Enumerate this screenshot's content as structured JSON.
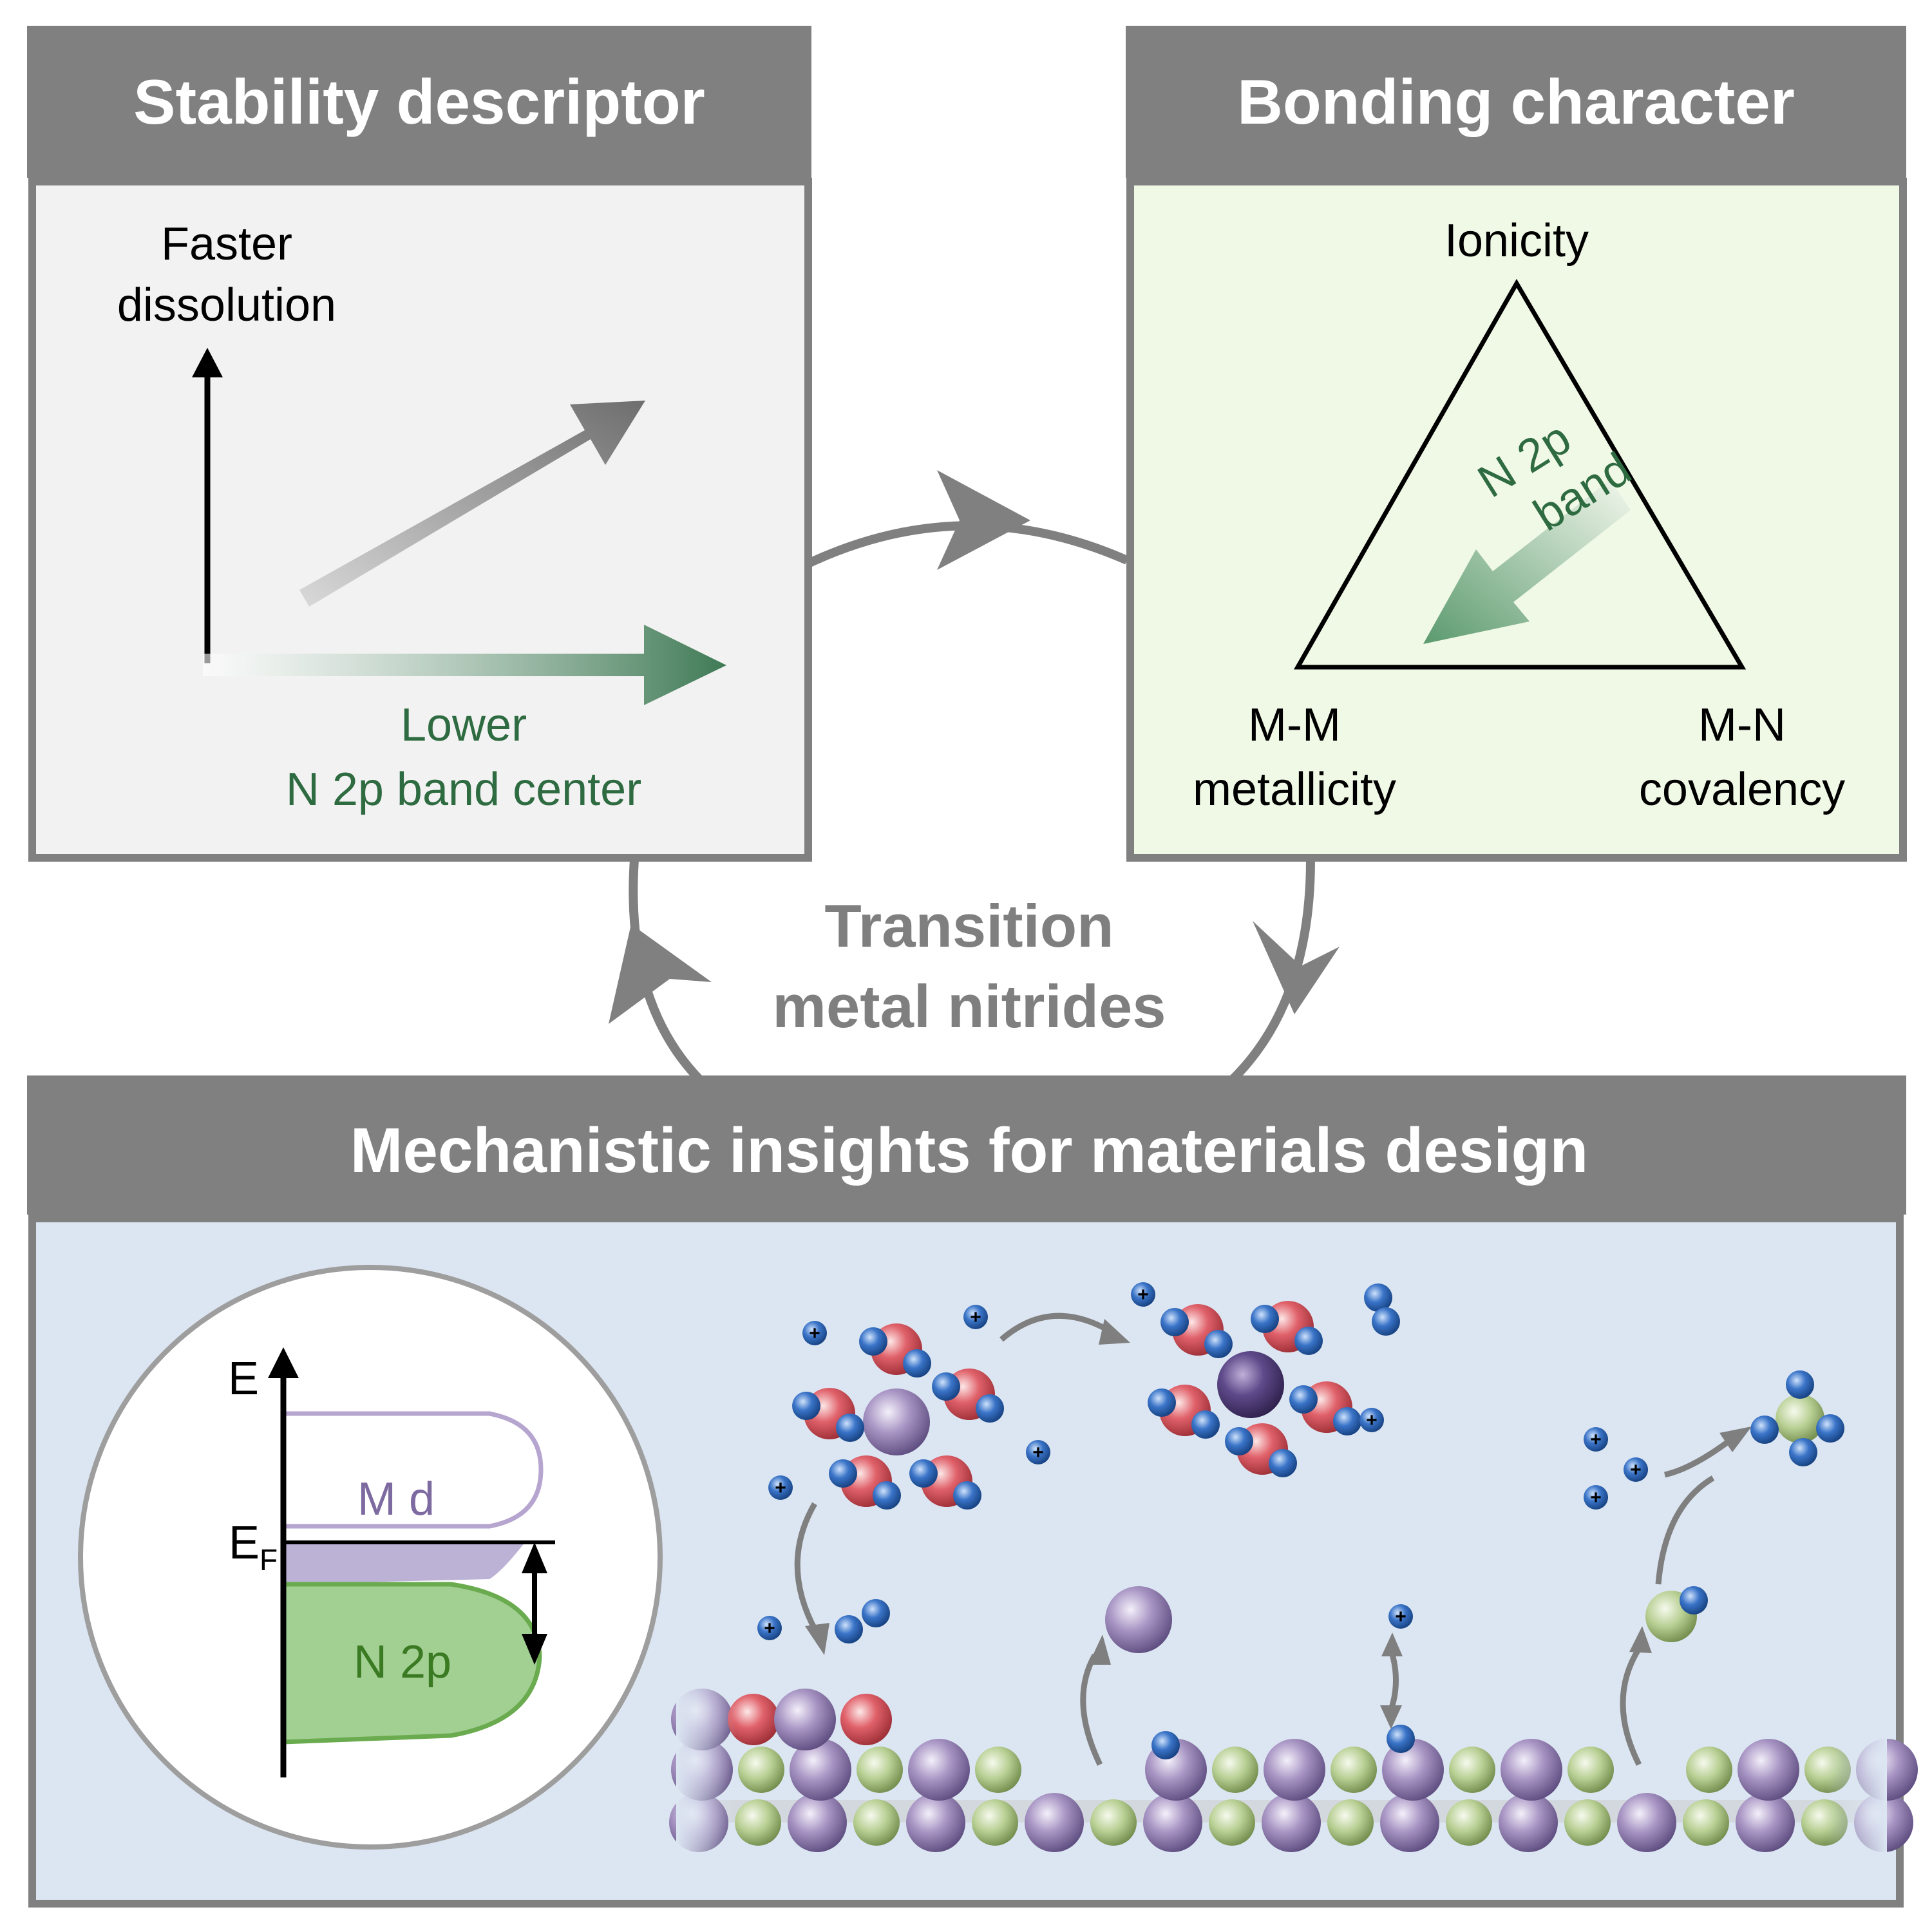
{
  "panels": {
    "stability": {
      "title": "Stability descriptor",
      "y_label_line1": "Faster",
      "y_label_line2": "dissolution",
      "x_label_line1": "Lower",
      "x_label_line2": "N 2p band center"
    },
    "bonding": {
      "title": "Bonding character",
      "top_vertex": "Ionicity",
      "left_vertex_line1": "M-M",
      "left_vertex_line2": "metallicity",
      "right_vertex_line1": "M-N",
      "right_vertex_line2": "covalency",
      "arrow_label_line1": "N 2p",
      "arrow_label_line2": "band"
    },
    "center": {
      "line1": "Transition",
      "line2": "metal nitrides"
    },
    "mechanistic": {
      "title": "Mechanistic insights for materials design",
      "energy_axis": "E",
      "fermi_main": "E",
      "fermi_sub": "F",
      "md_label": "M d",
      "n2p_label": "N 2p",
      "proton_symbol": "+"
    }
  },
  "colors": {
    "header_bg": "#808080",
    "stability_bg": "#f2f2f2",
    "bonding_bg": "#f0f8e6",
    "mechanistic_bg": "#dce6f2",
    "green_text": "#2e6b41",
    "purple_text": "#7d6aa0",
    "n2p_text": "#3a7a22",
    "gray_text": "#7f7f7f"
  }
}
